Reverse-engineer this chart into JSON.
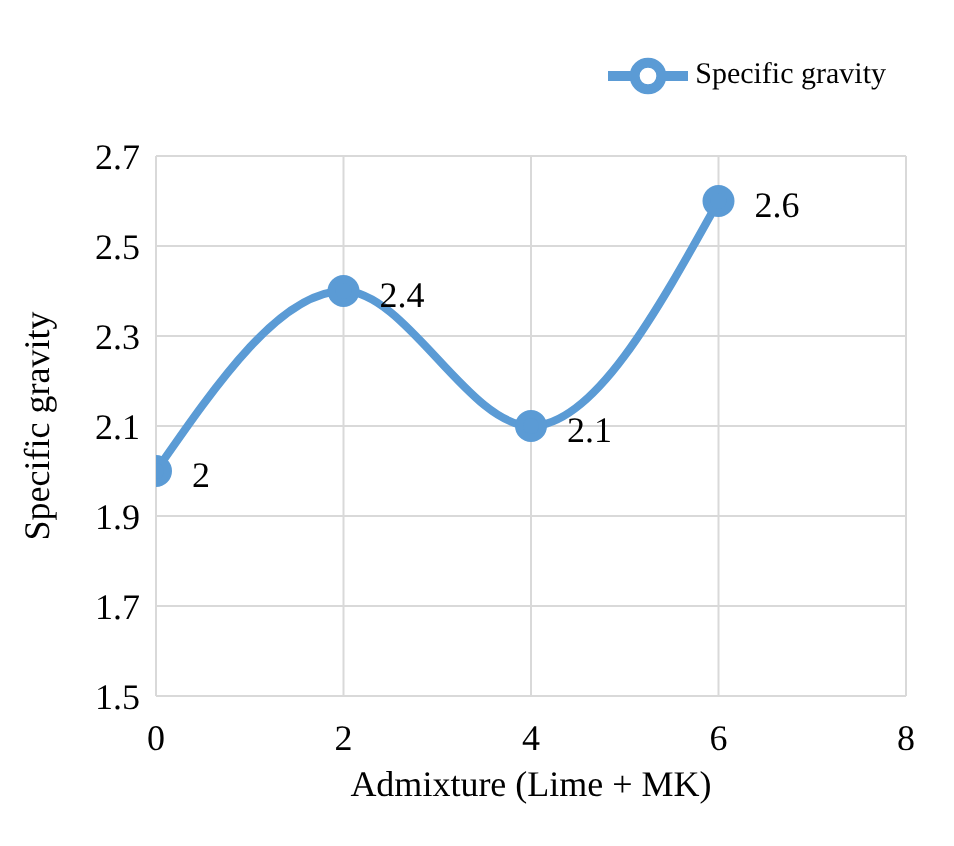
{
  "chart_data": {
    "type": "line",
    "xlabel": "Admixture (Lime + MK)",
    "ylabel": "Specific gravity",
    "x": [
      0,
      2,
      4,
      6
    ],
    "series": [
      {
        "name": "Specific gravity",
        "color": "#5b9bd5",
        "values": [
          2,
          2.4,
          2.1,
          2.6
        ]
      }
    ],
    "xlim": [
      0,
      8
    ],
    "xticks": [
      0,
      2,
      4,
      6,
      8
    ],
    "ylim": [
      1.5,
      2.7
    ],
    "yticks": [
      1.5,
      1.7,
      1.9,
      2.1,
      2.3,
      2.5,
      2.7
    ],
    "grid": true,
    "legend": "top right",
    "marker": "circle",
    "line_style": "solid",
    "data_labels": true
  }
}
